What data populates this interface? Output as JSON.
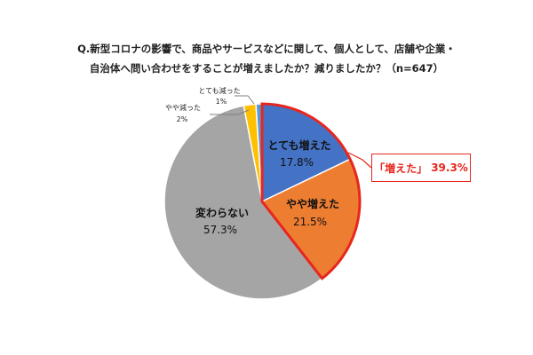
{
  "chart_data": {
    "type": "pie",
    "title_line1": "Q.新型コロナの影響で、商品やサービスなどに関して、個人として、店舗や企業・",
    "title_line2": "自治体へ問い合わせをすることが増えましたか？減りましたか？（n=647）",
    "slices": [
      {
        "label": "とても増えた",
        "value": 17.8,
        "value_text": "17.8%",
        "color": "#4472c4"
      },
      {
        "label": "やや増えた",
        "value": 21.5,
        "value_text": "21.5%",
        "color": "#ed7d31"
      },
      {
        "label": "変わらない",
        "value": 57.3,
        "value_text": "57.3%",
        "color": "#a5a5a5"
      },
      {
        "label": "やや減った",
        "value": 2,
        "value_text": "2%",
        "color": "#ffc000"
      },
      {
        "label": "とても減った",
        "value": 1,
        "value_text": "1%",
        "color": "#5b9bd5"
      }
    ],
    "highlight": {
      "label": "「増えた」",
      "value_text": "39.3%",
      "color": "#e8261e"
    }
  }
}
